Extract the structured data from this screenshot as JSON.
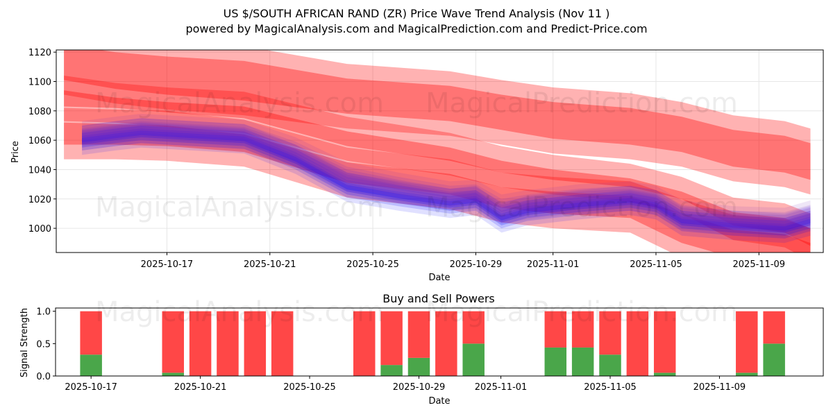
{
  "title_line1": "US $/SOUTH AFRICAN RAND (ZR) Price Wave Trend Analysis (Nov 11 )",
  "title_line2": "powered by MagicalAnalysis.com and MagicalPrediction.com and Predict-Price.com",
  "watermarks": [
    "MagicalAnalysis.com",
    "MagicalPrediction.com",
    "MagicalAnalysis.com",
    "MagicalPrediction.com",
    "MagicalAnalysis.com",
    "MagicalPrediction.com"
  ],
  "colors": {
    "red": "#ff0000",
    "blue": "#0000ff",
    "purple": "#7b2fbf",
    "buy": "#4aa64a",
    "sell": "#ff4747",
    "grid": "#e6e6e6"
  },
  "chart_data": [
    {
      "type": "line",
      "title": "",
      "xlabel": "Date",
      "ylabel": "Price",
      "ylim": [
        983.5,
        1121.5
      ],
      "xlim_days": [
        -2.3,
        27.5
      ],
      "x_origin_date": "2025-10-15",
      "xticks": [
        {
          "day": 2,
          "label": "2025-10-17"
        },
        {
          "day": 6,
          "label": "2025-10-21"
        },
        {
          "day": 10,
          "label": "2025-10-25"
        },
        {
          "day": 14,
          "label": "2025-10-29"
        },
        {
          "day": 17,
          "label": "2025-11-01"
        },
        {
          "day": 21,
          "label": "2025-11-05"
        },
        {
          "day": 25,
          "label": "2025-11-09"
        }
      ],
      "yticks": [
        1000,
        1020,
        1040,
        1060,
        1080,
        1100,
        1120
      ],
      "grid": true,
      "series": [
        {
          "name": "predicted-wave-upper",
          "color": "#ff0000",
          "x": [
            -2,
            0,
            2,
            5,
            9,
            13,
            15,
            17,
            20,
            22,
            24,
            26,
            27
          ],
          "low": [
            1101,
            1095,
            1091,
            1087,
            1078,
            1073,
            1067,
            1061,
            1057,
            1052,
            1042,
            1038,
            1033
          ],
          "high": [
            1125,
            1120,
            1117,
            1114,
            1102,
            1097,
            1091,
            1086,
            1082,
            1076,
            1067,
            1063,
            1058
          ]
        },
        {
          "name": "predicted-wave-middle",
          "color": "#ff0000",
          "x": [
            -2,
            0,
            2,
            5,
            9,
            13,
            15,
            17,
            20,
            22,
            24,
            26,
            27
          ],
          "low": [
            1083,
            1082,
            1079,
            1075,
            1056,
            1046,
            1038,
            1033,
            1028,
            1020,
            1002,
            997,
            988
          ],
          "high": [
            1094,
            1089,
            1086,
            1083,
            1066,
            1055,
            1046,
            1040,
            1034,
            1025,
            1011,
            1007,
            1000
          ]
        },
        {
          "name": "predicted-wave-lower",
          "color": "#ff0000",
          "x": [
            -2,
            0,
            2,
            5,
            9,
            13,
            15,
            17,
            20,
            22,
            24,
            26,
            27
          ],
          "low": [
            1057,
            1057,
            1056,
            1052,
            1031,
            1023,
            1014,
            1010,
            1007,
            990,
            980,
            978,
            974
          ],
          "high": [
            1072,
            1071,
            1070,
            1064,
            1045,
            1037,
            1028,
            1025,
            1022,
            1010,
            999,
            996,
            990
          ]
        },
        {
          "name": "price-wave-blue",
          "color": "#0000ff",
          "x": [
            -1.3,
            0,
            1,
            3,
            5,
            7,
            9,
            11,
            13,
            14,
            15,
            16,
            18,
            20,
            21,
            22,
            24,
            26,
            27
          ],
          "y": [
            1060,
            1063,
            1065,
            1063,
            1061,
            1047,
            1028,
            1022,
            1017,
            1019,
            1007,
            1012,
            1016,
            1019,
            1016,
            1005,
            1002,
            1000,
            1005
          ]
        },
        {
          "name": "price-wave-purple",
          "color": "#7b2fbf",
          "x": [
            -1.3,
            0,
            1,
            3,
            5,
            7,
            9,
            11,
            13,
            14,
            15,
            16,
            18,
            20,
            21,
            22,
            24,
            26,
            27
          ],
          "y": [
            1063,
            1066,
            1068,
            1066,
            1064,
            1052,
            1035,
            1028,
            1022,
            1023,
            1013,
            1016,
            1020,
            1022,
            1019,
            1009,
            1005,
            1004,
            1009
          ]
        }
      ]
    },
    {
      "type": "bar",
      "title": "Buy and Sell Powers",
      "xlabel": "Date",
      "ylabel": "Signal Strength",
      "ylim": [
        0,
        1.05
      ],
      "xlim_days": [
        -1.3,
        26.8
      ],
      "yticks": [
        "0.0",
        "0.5",
        "1.0"
      ],
      "xticks": [
        {
          "day": 0,
          "label": "2025-10-17"
        },
        {
          "day": 4,
          "label": "2025-10-21"
        },
        {
          "day": 8,
          "label": "2025-10-25"
        },
        {
          "day": 12,
          "label": "2025-10-29"
        },
        {
          "day": 15,
          "label": "2025-11-01"
        },
        {
          "day": 19,
          "label": "2025-11-05"
        },
        {
          "day": 23,
          "label": "2025-11-09"
        }
      ],
      "categories": [
        "2025-10-17",
        "2025-10-20",
        "2025-10-21",
        "2025-10-22",
        "2025-10-23",
        "2025-10-24",
        "2025-10-27",
        "2025-10-28",
        "2025-10-29",
        "2025-10-30",
        "2025-10-31",
        "2025-11-03",
        "2025-11-04",
        "2025-11-05",
        "2025-11-06",
        "2025-11-07",
        "2025-11-10",
        "2025-11-11"
      ],
      "days": [
        0,
        3,
        4,
        5,
        6,
        7,
        10,
        11,
        12,
        13,
        14,
        17,
        18,
        19,
        20,
        21,
        24,
        25
      ],
      "series": [
        {
          "name": "Buy",
          "color": "#4aa64a",
          "values": [
            0.33,
            0.05,
            0,
            0,
            0,
            0,
            0,
            0.17,
            0.28,
            0,
            0.5,
            0.44,
            0.44,
            0.33,
            0,
            0.05,
            0.05,
            0.5
          ]
        },
        {
          "name": "Sell",
          "color": "#ff4747",
          "values": [
            0.67,
            0.95,
            1,
            1,
            1,
            1,
            1,
            0.83,
            0.72,
            1,
            0.5,
            0.56,
            0.56,
            0.67,
            1,
            0.95,
            0.95,
            0.5
          ]
        }
      ]
    }
  ]
}
